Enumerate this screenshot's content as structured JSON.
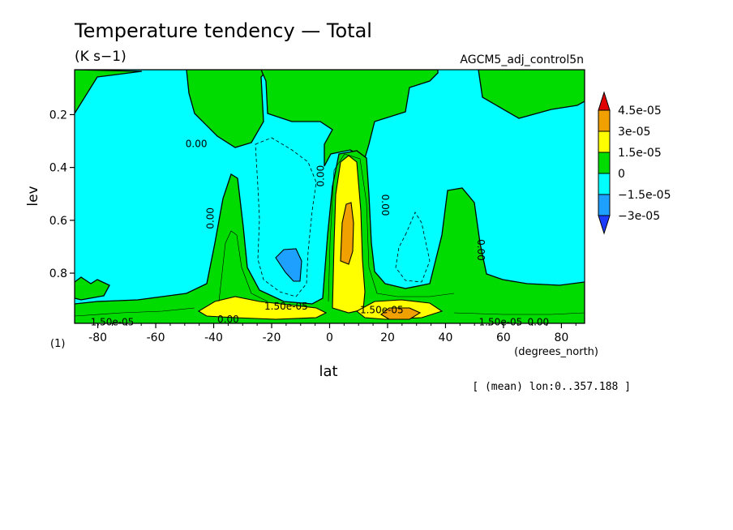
{
  "chart_data": {
    "type": "heatmap",
    "title": "Temperature tendency — Total",
    "units": "(K s−1)",
    "dataset": "AGCM5_adj_control5n",
    "xlabel": "lat",
    "x_unit_label": "(degrees_north)",
    "ylabel": "lev",
    "y_unit_label": "(1)",
    "footnote": "[ (mean) lon:0..357.188 ]",
    "xlim": [
      -88,
      88
    ],
    "ylim": [
      0.03,
      0.99
    ],
    "y_inverted": true,
    "x_ticks": [
      -80,
      -60,
      -40,
      -20,
      0,
      20,
      40,
      60,
      80
    ],
    "y_ticks": [
      0.2,
      0.4,
      0.6,
      0.8
    ],
    "colorbar": {
      "levels": [
        "4.5e-05",
        "3e-05",
        "1.5e-05",
        "0",
        "−1.5e-05",
        "−3e-05"
      ],
      "colors": [
        "#e00000",
        "#f0a000",
        "#ffff00",
        "#00dc00",
        "#00ffff",
        "#1ea0ff",
        "#1e3cff"
      ]
    },
    "contour_labels": [
      {
        "text": "0.00",
        "lat": -46,
        "lev": 0.31,
        "rotate": 0
      },
      {
        "text": "0.00",
        "lat": -40,
        "lev": 0.58,
        "rotate": -90
      },
      {
        "text": "0.00",
        "lat": -2,
        "lev": 0.42,
        "rotate": -90
      },
      {
        "text": "0.00",
        "lat": 18,
        "lev": 0.53,
        "rotate": 90
      },
      {
        "text": "0.00",
        "lat": 51,
        "lev": 0.7,
        "rotate": 90
      },
      {
        "text": "1.50e-05",
        "lat": -15,
        "lev": 0.925,
        "rotate": 0
      },
      {
        "text": "1.50e-05",
        "lat": 18,
        "lev": 0.94,
        "rotate": 0
      },
      {
        "text": "1.50e-05",
        "lat": -75,
        "lev": 0.985,
        "rotate": 0
      },
      {
        "text": "1.50e-05",
        "lat": 59,
        "lev": 0.985,
        "rotate": 0
      },
      {
        "text": "0.00",
        "lat": 72,
        "lev": 0.985,
        "rotate": 0
      },
      {
        "text": "0.00",
        "lat": -35,
        "lev": 0.975,
        "rotate": 0
      }
    ]
  }
}
